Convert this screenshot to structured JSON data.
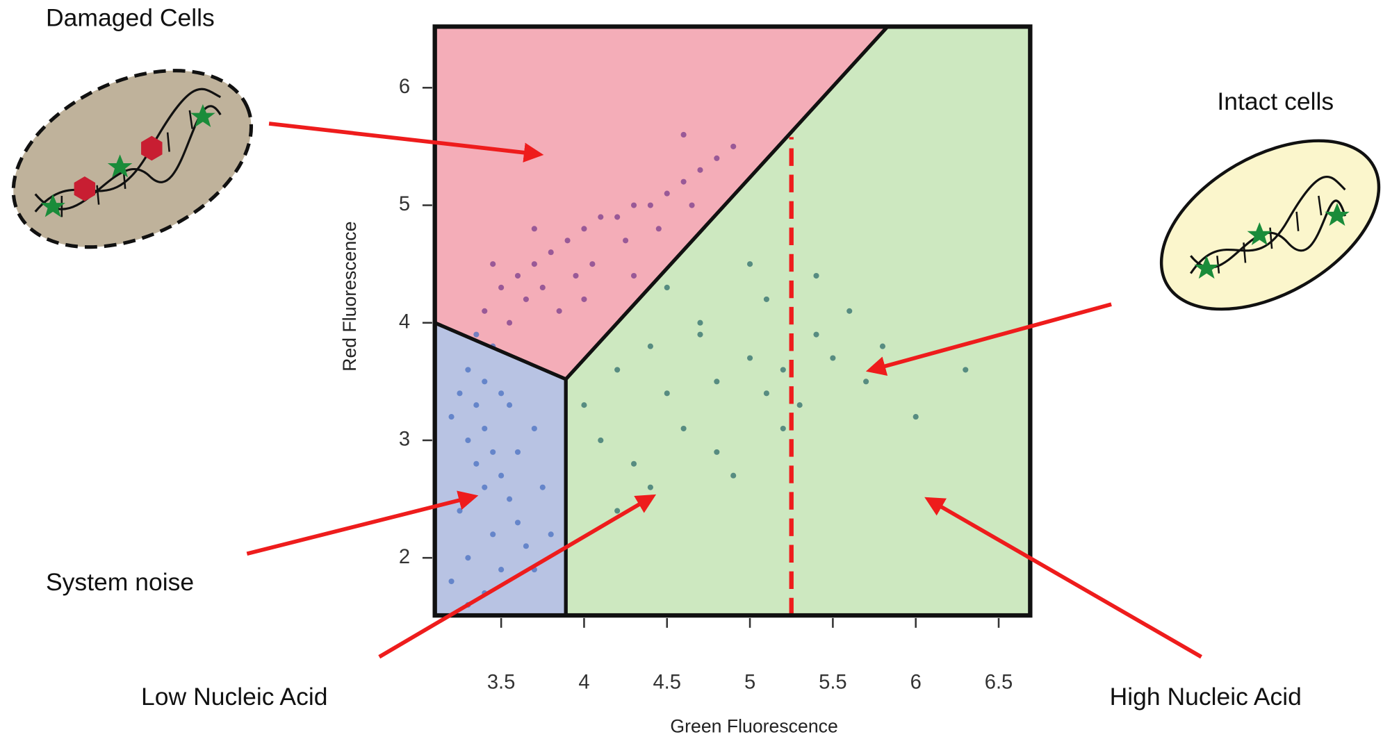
{
  "chart_data": {
    "type": "scatter",
    "x_label": "Green Fluorescence",
    "y_label": "Red Fluorescence",
    "xlim": [
      3.1,
      6.69
    ],
    "ylim": [
      1.51,
      6.52
    ],
    "xticks": [
      3.5,
      4,
      4.5,
      5,
      5.5,
      6,
      6.5
    ],
    "yticks": [
      2,
      3,
      4,
      5,
      6
    ],
    "regions": [
      {
        "color": "#f4adb8",
        "x": [
          3.1,
          3.89,
          5.83,
          3.1
        ],
        "y": [
          4.0,
          3.52,
          6.52,
          6.52
        ]
      },
      {
        "color": "#b8c3e3",
        "x": [
          3.1,
          3.89,
          3.89,
          3.1
        ],
        "y": [
          4.0,
          3.52,
          1.51,
          1.51
        ]
      },
      {
        "color": "#cde8c0",
        "x": [
          3.89,
          5.83,
          6.69,
          6.69,
          3.89
        ],
        "y": [
          3.52,
          6.52,
          6.52,
          1.51,
          1.51
        ]
      }
    ],
    "threshold": {
      "x": 5.25,
      "y_top": 5.58,
      "color": "#ee1c1c"
    },
    "series": [
      {
        "color": "#7b3d8c",
        "x": [
          3.4,
          3.5,
          3.6,
          3.7,
          3.8,
          3.9,
          4.0,
          4.1,
          4.2,
          4.3,
          4.4,
          4.5,
          4.6,
          4.7,
          4.8,
          3.55,
          3.65,
          3.75,
          3.85,
          3.95,
          4.05,
          4.25,
          4.45,
          4.65,
          4.9,
          3.45,
          3.7,
          4.0,
          4.3,
          4.6
        ],
        "values": [
          4.1,
          4.3,
          4.4,
          4.5,
          4.6,
          4.7,
          4.8,
          4.9,
          4.9,
          5.0,
          5.0,
          5.1,
          5.2,
          5.3,
          5.4,
          4.0,
          4.2,
          4.3,
          4.1,
          4.4,
          4.5,
          4.7,
          4.8,
          5.0,
          5.5,
          4.5,
          4.8,
          4.2,
          4.4,
          5.6
        ]
      },
      {
        "color": "#4a70c2",
        "x": [
          3.2,
          3.25,
          3.3,
          3.35,
          3.4,
          3.45,
          3.5,
          3.55,
          3.6,
          3.65,
          3.7,
          3.75,
          3.8,
          3.3,
          3.35,
          3.4,
          3.25,
          3.45,
          3.5,
          3.6,
          3.2,
          3.3,
          3.4,
          3.5,
          3.7,
          3.35,
          3.45,
          3.55,
          3.3,
          3.4
        ],
        "values": [
          3.2,
          3.4,
          3.0,
          3.3,
          3.1,
          2.9,
          2.7,
          2.5,
          2.3,
          2.1,
          1.9,
          2.6,
          2.2,
          3.6,
          2.8,
          3.5,
          2.4,
          3.8,
          3.4,
          2.9,
          1.8,
          2.0,
          1.7,
          1.9,
          3.1,
          3.9,
          2.2,
          3.3,
          1.6,
          2.6
        ]
      },
      {
        "color": "#2f6e6c",
        "x": [
          4.0,
          4.1,
          4.2,
          4.3,
          4.4,
          4.5,
          4.6,
          4.7,
          4.8,
          4.9,
          5.0,
          5.1,
          5.2,
          5.3,
          5.4,
          5.5,
          5.6,
          5.7,
          5.8,
          6.0,
          4.2,
          4.5,
          4.8,
          5.0,
          5.2,
          5.4,
          4.4,
          4.7,
          5.1,
          6.3
        ],
        "values": [
          3.3,
          3.0,
          3.6,
          2.8,
          3.8,
          3.4,
          3.1,
          4.0,
          3.5,
          2.7,
          3.7,
          4.2,
          3.6,
          3.3,
          3.9,
          3.7,
          4.1,
          3.5,
          3.8,
          3.2,
          2.4,
          4.3,
          2.9,
          4.5,
          3.1,
          4.4,
          2.6,
          3.9,
          3.4,
          3.6
        ]
      }
    ],
    "annotations": [
      {
        "text": "Damaged Cells"
      },
      {
        "text": "Intact cells"
      },
      {
        "text": "System noise"
      },
      {
        "text": "Low Nucleic Acid"
      },
      {
        "text": "High Nucleic Acid"
      }
    ]
  }
}
